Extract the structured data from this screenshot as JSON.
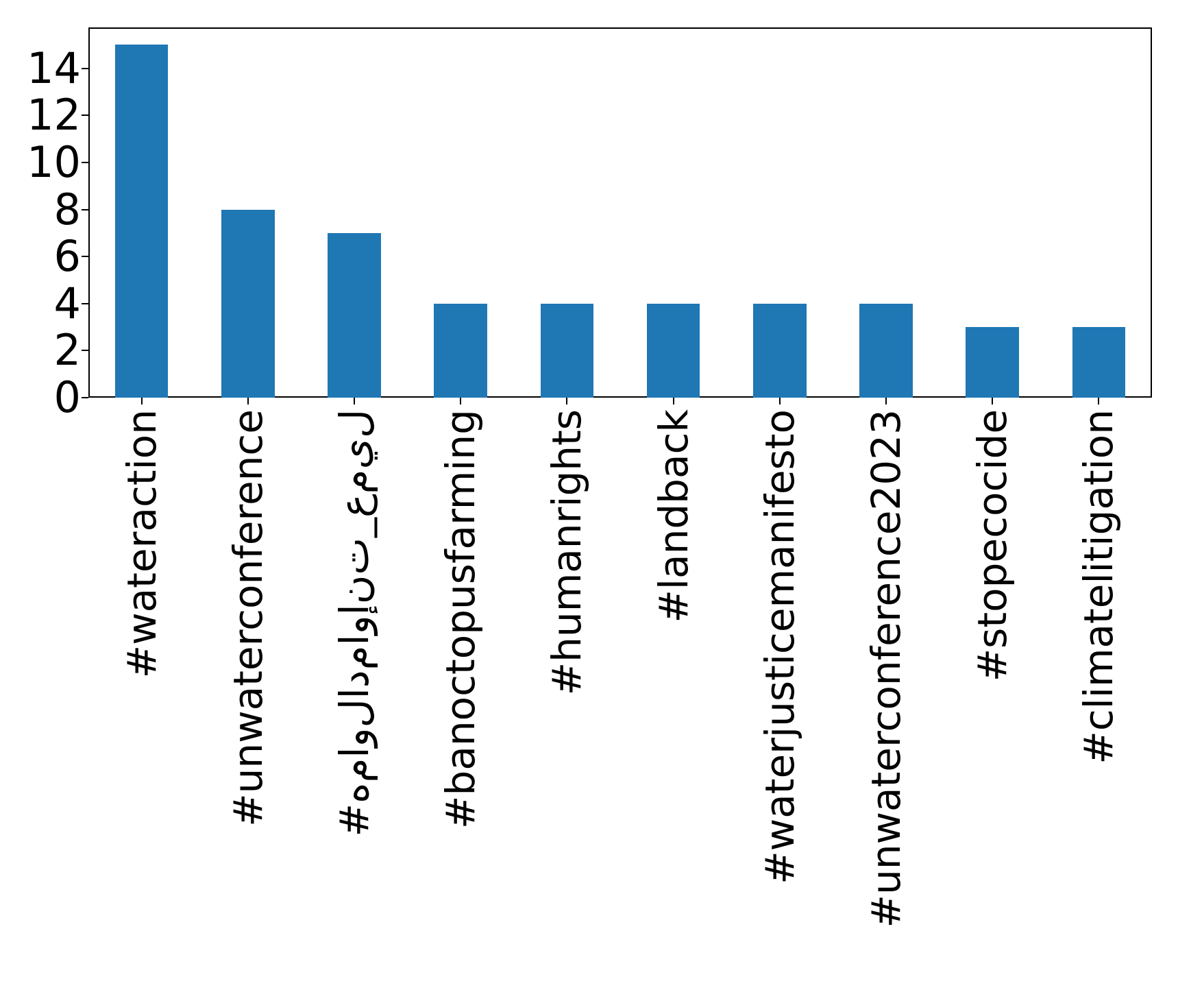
{
  "figure": {
    "background": "#ffffff",
    "text_color": "#000000"
  },
  "chart_data": {
    "type": "bar",
    "title": "",
    "xlabel": "",
    "ylabel": "",
    "categories": [
      "#wateraction",
      "#unwaterconference",
      "#هماولادماوإنت_عميل",
      "#banoctopusfarming",
      "#humanrights",
      "#landback",
      "#waterjusticemanifesto",
      "#unwaterconference2023",
      "#stopecocide",
      "#climatelitigation"
    ],
    "values": [
      15,
      8,
      7,
      4,
      4,
      4,
      4,
      4,
      3,
      3
    ],
    "bar_color": "#1f77b4",
    "ylim": [
      0,
      15.74
    ],
    "yticks": [
      0,
      2,
      4,
      6,
      8,
      10,
      12,
      14
    ],
    "grid": false,
    "legend": "none",
    "xtick_rotation": 90
  }
}
